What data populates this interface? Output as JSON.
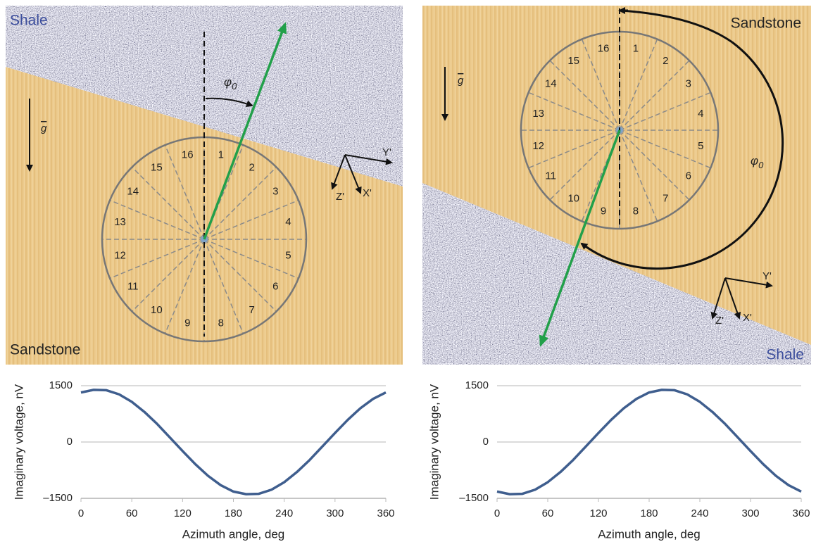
{
  "diagrams": [
    {
      "top_layer": "Shale",
      "bottom_layer": "Sandstone",
      "gravity": "g",
      "angle_symbol": "φ",
      "angle_subscript": "0",
      "axis_y": "Y'",
      "axis_z": "Z'",
      "axis_x": "X'",
      "sectors": [
        "1",
        "2",
        "3",
        "4",
        "5",
        "6",
        "7",
        "8",
        "9",
        "10",
        "11",
        "12",
        "13",
        "14",
        "15",
        "16"
      ]
    },
    {
      "top_layer": "Sandstone",
      "bottom_layer": "Shale",
      "gravity": "g",
      "angle_symbol": "φ",
      "angle_subscript": "0",
      "axis_y": "Y'",
      "axis_z": "Z'",
      "axis_x": "X'",
      "sectors": [
        "1",
        "2",
        "3",
        "4",
        "5",
        "6",
        "7",
        "8",
        "9",
        "10",
        "11",
        "12",
        "13",
        "14",
        "15",
        "16"
      ]
    }
  ],
  "chart_data": [
    {
      "type": "line",
      "x_label": "Azimuth angle, deg",
      "y_label": "Imaginary voltage, nV",
      "x": [
        0,
        15,
        30,
        45,
        60,
        75,
        90,
        105,
        120,
        135,
        150,
        165,
        180,
        195,
        210,
        225,
        240,
        255,
        270,
        285,
        300,
        315,
        330,
        345,
        360
      ],
      "series": [
        {
          "color": "#3f5e8e",
          "values": [
            1320,
            1390,
            1380,
            1270,
            1070,
            800,
            480,
            120,
            -240,
            -590,
            -900,
            -1150,
            -1320,
            -1390,
            -1380,
            -1270,
            -1070,
            -800,
            -480,
            -120,
            240,
            590,
            900,
            1150,
            1320
          ]
        }
      ],
      "xlim": [
        0,
        360
      ],
      "xticks": [
        0,
        60,
        120,
        180,
        240,
        300,
        360
      ],
      "ylim": [
        -1500,
        1500
      ],
      "yticks": [
        {
          "value": -1500,
          "label": "–1500"
        },
        0,
        1500
      ],
      "grid": true
    },
    {
      "type": "line",
      "x_label": "Azimuth angle, deg",
      "y_label": "Imaginary voltage, nV",
      "x": [
        0,
        15,
        30,
        45,
        60,
        75,
        90,
        105,
        120,
        135,
        150,
        165,
        180,
        195,
        210,
        225,
        240,
        255,
        270,
        285,
        300,
        315,
        330,
        345,
        360
      ],
      "series": [
        {
          "color": "#3f5e8e",
          "values": [
            -1320,
            -1390,
            -1380,
            -1270,
            -1070,
            -800,
            -480,
            -120,
            240,
            590,
            900,
            1150,
            1320,
            1390,
            1380,
            1270,
            1070,
            800,
            480,
            120,
            -240,
            -590,
            -900,
            -1150,
            -1320
          ]
        }
      ],
      "xlim": [
        0,
        360
      ],
      "xticks": [
        0,
        60,
        120,
        180,
        240,
        300,
        360
      ],
      "ylim": [
        -1500,
        1500
      ],
      "yticks": [
        {
          "value": -1500,
          "label": "–1500"
        },
        0,
        1500
      ],
      "grid": true
    }
  ]
}
